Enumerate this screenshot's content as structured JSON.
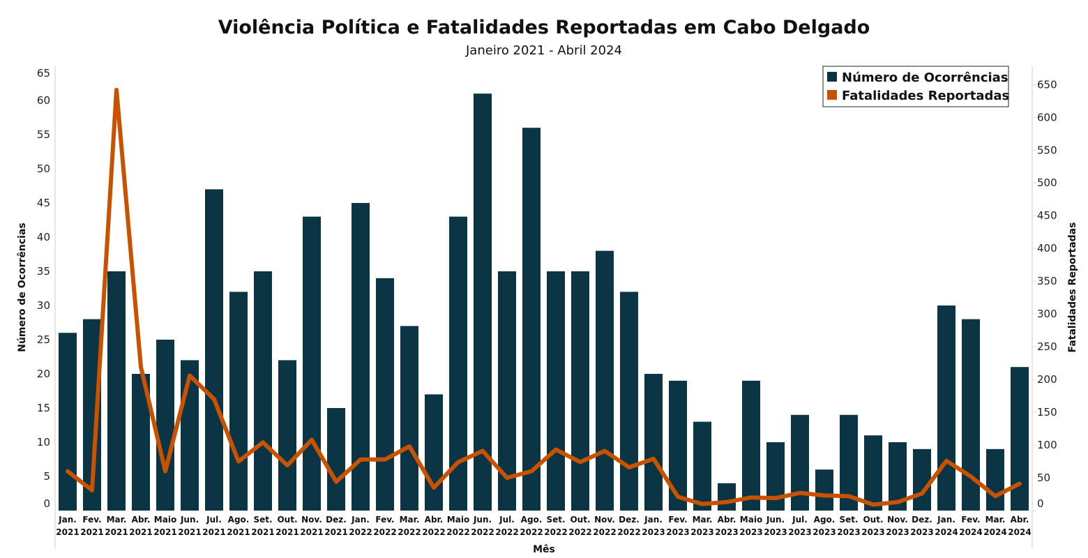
{
  "chart_data": {
    "type": "bar+line",
    "title": "Violência Política e Fatalidades Reportadas em Cabo Delgado",
    "subtitle": "Janeiro 2021 - Abril 2024",
    "xlabel": "Mês",
    "ylabel": "Número de Ocorrências",
    "y2label": "Fatalidades Reportadas",
    "ylim": [
      0,
      65
    ],
    "y2lim": [
      0,
      678
    ],
    "yticks": [
      0,
      5,
      10,
      15,
      20,
      25,
      30,
      35,
      40,
      45,
      50,
      55,
      60,
      65
    ],
    "y2ticks": [
      0,
      50,
      100,
      150,
      200,
      250,
      300,
      350,
      400,
      450,
      500,
      550,
      600,
      650
    ],
    "legend_position": "top-right",
    "categories": [
      [
        "Jan.",
        "2021"
      ],
      [
        "Fev.",
        "2021"
      ],
      [
        "Mar.",
        "2021"
      ],
      [
        "Abr.",
        "2021"
      ],
      [
        "Maio",
        "2021"
      ],
      [
        "Jun.",
        "2021"
      ],
      [
        "Jul.",
        "2021"
      ],
      [
        "Ago.",
        "2021"
      ],
      [
        "Set.",
        "2021"
      ],
      [
        "Out.",
        "2021"
      ],
      [
        "Nov.",
        "2021"
      ],
      [
        "Dez.",
        "2021"
      ],
      [
        "Jan.",
        "2022"
      ],
      [
        "Fev.",
        "2022"
      ],
      [
        "Mar.",
        "2022"
      ],
      [
        "Abr.",
        "2022"
      ],
      [
        "Maio",
        "2022"
      ],
      [
        "Jun.",
        "2022"
      ],
      [
        "Jul.",
        "2022"
      ],
      [
        "Ago.",
        "2022"
      ],
      [
        "Set.",
        "2022"
      ],
      [
        "Out.",
        "2022"
      ],
      [
        "Nov.",
        "2022"
      ],
      [
        "Dez.",
        "2022"
      ],
      [
        "Jan.",
        "2023"
      ],
      [
        "Fev.",
        "2023"
      ],
      [
        "Mar.",
        "2023"
      ],
      [
        "Abr.",
        "2023"
      ],
      [
        "Maio",
        "2023"
      ],
      [
        "Jun.",
        "2023"
      ],
      [
        "Jul.",
        "2023"
      ],
      [
        "Ago.",
        "2023"
      ],
      [
        "Set.",
        "2023"
      ],
      [
        "Out.",
        "2023"
      ],
      [
        "Nov.",
        "2023"
      ],
      [
        "Dez.",
        "2023"
      ],
      [
        "Jan.",
        "2024"
      ],
      [
        "Fev.",
        "2024"
      ],
      [
        "Mar.",
        "2024"
      ],
      [
        "Abr.",
        "2024"
      ]
    ],
    "series": [
      {
        "name": "Número de Ocorrências",
        "type": "bar",
        "axis": "left",
        "color": "#0b3545",
        "values": [
          26,
          28,
          35,
          20,
          25,
          22,
          47,
          32,
          35,
          22,
          43,
          15,
          45,
          34,
          27,
          17,
          43,
          61,
          35,
          56,
          35,
          35,
          38,
          32,
          20,
          19,
          13,
          4,
          19,
          10,
          14,
          6,
          14,
          11,
          10,
          9,
          30,
          28,
          9,
          21
        ]
      },
      {
        "name": "Fatalidades Reportadas",
        "type": "line",
        "axis": "right",
        "color": "#c85200",
        "values": [
          60,
          31,
          642,
          219,
          60,
          206,
          170,
          75,
          104,
          69,
          108,
          44,
          78,
          78,
          98,
          35,
          74,
          91,
          50,
          60,
          93,
          74,
          91,
          66,
          79,
          21,
          10,
          13,
          20,
          19,
          27,
          23,
          22,
          9,
          13,
          26,
          76,
          52,
          22,
          41
        ]
      }
    ]
  }
}
